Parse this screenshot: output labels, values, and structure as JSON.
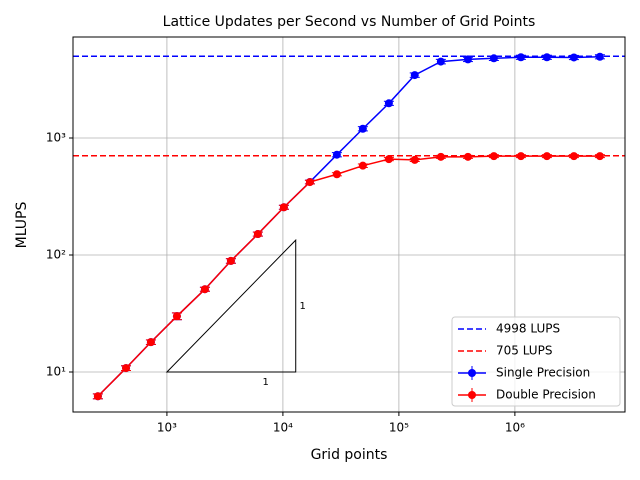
{
  "chart_data": {
    "type": "line",
    "title": "Lattice Updates per Second vs Number of Grid Points",
    "xlabel": "Grid points",
    "ylabel": "MLUPS",
    "xscale": "log",
    "yscale": "log",
    "xlim": [
      155,
      8900000
    ],
    "ylim": [
      4.55,
      7300
    ],
    "xticks": [
      {
        "value": 1000,
        "label": "10³"
      },
      {
        "value": 10000,
        "label": "10⁴"
      },
      {
        "value": 100000,
        "label": "10⁵"
      },
      {
        "value": 1000000,
        "label": "10⁶"
      }
    ],
    "yticks": [
      {
        "value": 10,
        "label": "10¹"
      },
      {
        "value": 100,
        "label": "10²"
      },
      {
        "value": 1000,
        "label": "10³"
      }
    ],
    "grid": true,
    "legend": "lower right",
    "hlines": [
      {
        "name": "4998 LUPS",
        "value": 4998,
        "color": "#0000ff"
      },
      {
        "name": "705 LUPS",
        "value": 705,
        "color": "#ff0000"
      }
    ],
    "x": [
      254,
      444,
      728,
      1220,
      2127,
      3562,
      6085,
      10200,
      17100,
      29200,
      48900,
      82000,
      137000,
      230000,
      394000,
      659000,
      1127000,
      1888000,
      3228000,
      5408000
    ],
    "series": [
      {
        "name": "Single Precision",
        "color": "#0000ff",
        "values": [
          6.2,
          10.8,
          18,
          30,
          51,
          89,
          151,
          256,
          421,
          720,
          1200,
          1980,
          3450,
          4500,
          4700,
          4800,
          4900,
          4900,
          4880,
          4950
        ],
        "errors": [
          0.3,
          0.5,
          0.8,
          2,
          2,
          4,
          6,
          10,
          15,
          30,
          50,
          80,
          150,
          200,
          200,
          200,
          200,
          200,
          200,
          200
        ]
      },
      {
        "name": "Double Precision",
        "color": "#ff0000",
        "values": [
          6.2,
          10.8,
          18,
          30,
          51,
          89,
          151,
          256,
          420,
          490,
          580,
          660,
          650,
          690,
          690,
          700,
          700,
          700,
          700,
          700
        ],
        "errors": [
          0.3,
          0.5,
          0.8,
          2,
          2,
          4,
          6,
          10,
          15,
          15,
          20,
          20,
          20,
          20,
          20,
          20,
          20,
          20,
          20,
          20
        ]
      }
    ],
    "slope_triangle": {
      "x": [
        1000,
        12900,
        12900
      ],
      "y": [
        10,
        10,
        134
      ],
      "labels": [
        "1",
        "1"
      ]
    }
  }
}
